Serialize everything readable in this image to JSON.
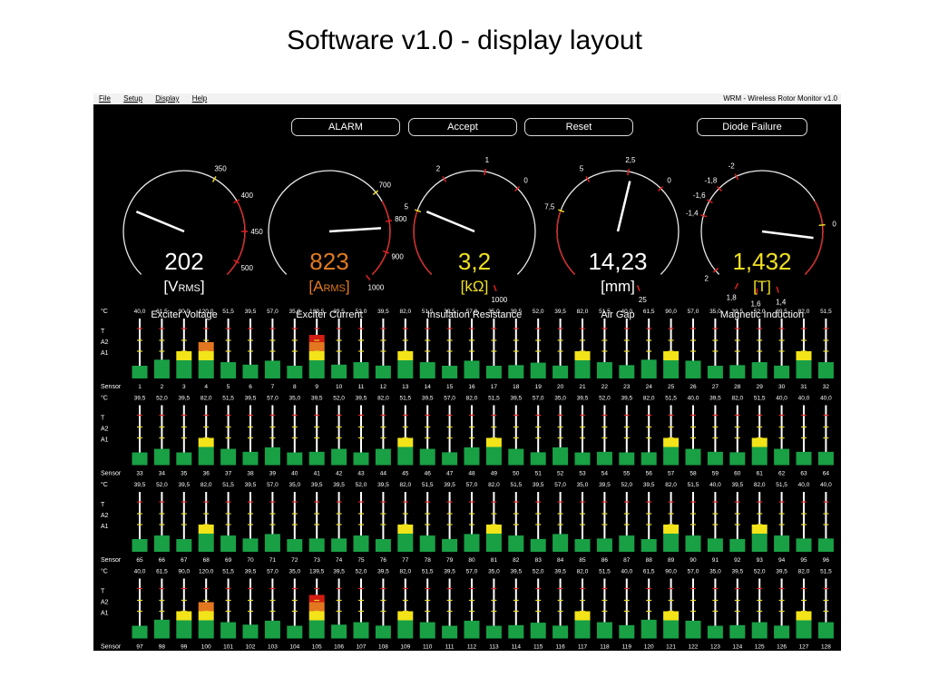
{
  "slide_title": "Software v1.0 - display layout",
  "menu": {
    "items": [
      "File",
      "Setup",
      "Display",
      "Help"
    ],
    "app_name": "WRM - Wireless Rotor Monitor v1.0"
  },
  "buttons": {
    "alarm": "ALARM",
    "accept": "Accept",
    "reset": "Reset",
    "diode_failure": "Diode Failure"
  },
  "gauges": [
    {
      "id": "voltage",
      "value": "202",
      "unit": "[V",
      "unit_sub": "RMS",
      "unit_tail": "]",
      "label": "Exciter Voltage",
      "color": "#ffffff",
      "ticks": [
        "350",
        "400",
        "450",
        "500"
      ],
      "needle_fraction": 0.25
    },
    {
      "id": "current",
      "value": "823",
      "unit": "[A",
      "unit_sub": "RMS",
      "unit_tail": "]",
      "label": "Exciter Current",
      "color": "#e07a20",
      "ticks": [
        "700",
        "800",
        "900",
        "1000"
      ],
      "needle_fraction": 0.82
    },
    {
      "id": "insulation",
      "value": "3,2",
      "unit": "[kΩ]",
      "unit_sub": "",
      "unit_tail": "",
      "label": "Insulation Resistance",
      "color": "#f0e020",
      "ticks": [
        "5",
        "2",
        "1",
        "0",
        "1000"
      ],
      "needle_fraction": 0.25
    },
    {
      "id": "airgap",
      "value": "14,23",
      "unit": "[mm]",
      "unit_sub": "",
      "unit_tail": "",
      "label": "Air Gap",
      "color": "#ffffff",
      "ticks": [
        "7,5",
        "5",
        "2,5",
        "0",
        "25"
      ],
      "needle_fraction": 0.55
    },
    {
      "id": "induction",
      "value": "1,432",
      "unit": "[T]",
      "unit_sub": "",
      "unit_tail": "",
      "label": "Magnetic Induction",
      "color": "#f0e020",
      "ticks": [
        "0",
        "1,4",
        "1,6",
        "1,8",
        "2",
        "-1,4",
        "-1,6",
        "-1,8",
        "-2"
      ],
      "needle_fraction": 0.86
    }
  ],
  "sensor_rows": [
    {
      "temps": [
        "40,0",
        "61,5",
        "90,0",
        "120,0",
        "51,5",
        "39,5",
        "57,0",
        "35,0",
        "139,5",
        "39,5",
        "52,0",
        "39,5",
        "82,0",
        "51,5",
        "39,5",
        "57,0",
        "35,0",
        "39,5",
        "52,0",
        "39,5",
        "82,0",
        "51,5",
        "40,0",
        "61,5",
        "90,0",
        "57,0",
        "35,0",
        "39,5",
        "52,0",
        "39,5",
        "82,0",
        "51,5"
      ],
      "ids": [
        "1",
        "2",
        "3",
        "4",
        "5",
        "6",
        "7",
        "8",
        "9",
        "10",
        "11",
        "12",
        "13",
        "14",
        "15",
        "16",
        "17",
        "18",
        "19",
        "20",
        "21",
        "22",
        "23",
        "24",
        "25",
        "26",
        "27",
        "28",
        "29",
        "30",
        "31",
        "32"
      ],
      "levels": [
        0.25,
        0.38,
        0.62,
        0.88,
        0.33,
        0.28,
        0.36,
        0.22,
        0.98,
        0.28,
        0.33,
        0.26,
        0.55,
        0.33,
        0.25,
        0.36,
        0.24,
        0.27,
        0.32,
        0.26,
        0.55,
        0.33,
        0.27,
        0.38,
        0.6,
        0.36,
        0.24,
        0.27,
        0.33,
        0.26,
        0.55,
        0.33
      ]
    },
    {
      "temps": [
        "39,5",
        "52,0",
        "39,5",
        "82,0",
        "51,5",
        "39,5",
        "57,0",
        "35,0",
        "39,5",
        "52,0",
        "39,5",
        "82,0",
        "51,5",
        "39,5",
        "57,0",
        "82,0",
        "51,5",
        "39,5",
        "57,0",
        "35,0",
        "39,5",
        "52,0",
        "39,5",
        "82,0",
        "51,5",
        "40,0",
        "39,5",
        "82,0",
        "51,5",
        "40,0",
        "40,0",
        "40,0"
      ],
      "ids": [
        "33",
        "34",
        "35",
        "36",
        "37",
        "38",
        "39",
        "40",
        "41",
        "42",
        "43",
        "44",
        "45",
        "46",
        "47",
        "48",
        "49",
        "50",
        "51",
        "52",
        "53",
        "54",
        "55",
        "56",
        "57",
        "58",
        "59",
        "60",
        "61",
        "62",
        "63",
        "64"
      ],
      "levels": [
        0.25,
        0.33,
        0.25,
        0.55,
        0.33,
        0.27,
        0.36,
        0.22,
        0.27,
        0.33,
        0.25,
        0.33,
        0.55,
        0.33,
        0.26,
        0.36,
        0.55,
        0.33,
        0.26,
        0.36,
        0.22,
        0.27,
        0.25,
        0.26,
        0.55,
        0.33,
        0.27,
        0.26,
        0.55,
        0.33,
        0.27,
        0.27
      ]
    },
    {
      "temps": [
        "39,5",
        "52,0",
        "39,5",
        "82,0",
        "51,5",
        "39,5",
        "57,0",
        "35,0",
        "39,5",
        "39,5",
        "52,0",
        "39,5",
        "82,0",
        "51,5",
        "39,5",
        "57,0",
        "82,0",
        "51,5",
        "39,5",
        "57,0",
        "35,0",
        "39,5",
        "52,0",
        "39,5",
        "82,0",
        "51,5",
        "40,0",
        "39,5",
        "82,0",
        "51,5",
        "40,0",
        "40,0"
      ],
      "ids": [
        "65",
        "66",
        "67",
        "68",
        "69",
        "70",
        "71",
        "72",
        "73",
        "74",
        "75",
        "76",
        "77",
        "78",
        "79",
        "80",
        "81",
        "82",
        "83",
        "84",
        "85",
        "86",
        "87",
        "88",
        "89",
        "90",
        "91",
        "92",
        "93",
        "94",
        "95",
        "96"
      ],
      "levels": [
        0.25,
        0.33,
        0.25,
        0.55,
        0.33,
        0.27,
        0.36,
        0.22,
        0.27,
        0.27,
        0.33,
        0.25,
        0.55,
        0.33,
        0.26,
        0.36,
        0.55,
        0.33,
        0.26,
        0.36,
        0.22,
        0.27,
        0.33,
        0.25,
        0.55,
        0.33,
        0.27,
        0.26,
        0.55,
        0.33,
        0.27,
        0.27
      ]
    },
    {
      "temps": [
        "40,0",
        "61,5",
        "90,0",
        "120,0",
        "51,5",
        "39,5",
        "57,0",
        "35,0",
        "139,5",
        "39,5",
        "52,0",
        "39,5",
        "82,0",
        "51,5",
        "39,5",
        "57,0",
        "35,0",
        "39,5",
        "52,0",
        "39,5",
        "82,0",
        "51,5",
        "40,0",
        "61,5",
        "90,0",
        "57,0",
        "35,0",
        "39,5",
        "52,0",
        "39,5",
        "82,0",
        "51,5"
      ],
      "ids": [
        "97",
        "98",
        "99",
        "100",
        "101",
        "102",
        "103",
        "104",
        "105",
        "106",
        "107",
        "108",
        "109",
        "110",
        "111",
        "112",
        "113",
        "114",
        "115",
        "116",
        "117",
        "118",
        "119",
        "120",
        "121",
        "122",
        "123",
        "124",
        "125",
        "126",
        "127",
        "128"
      ],
      "levels": [
        0.25,
        0.38,
        0.62,
        0.88,
        0.33,
        0.28,
        0.36,
        0.22,
        0.98,
        0.28,
        0.33,
        0.26,
        0.55,
        0.33,
        0.25,
        0.36,
        0.24,
        0.27,
        0.32,
        0.26,
        0.55,
        0.33,
        0.27,
        0.38,
        0.6,
        0.36,
        0.24,
        0.27,
        0.33,
        0.26,
        0.55,
        0.33
      ]
    }
  ],
  "row_labels": {
    "unit": "°C",
    "t": "T",
    "a2": "A2",
    "a1": "A1",
    "sensor": "Sensor"
  },
  "colors": {
    "green": "#19a045",
    "yellow": "#f2e418",
    "orange": "#e3771f",
    "red": "#d21d12",
    "needle": "#ffffff",
    "tick_red": "#e02020",
    "tick_yellow": "#e8d820"
  }
}
